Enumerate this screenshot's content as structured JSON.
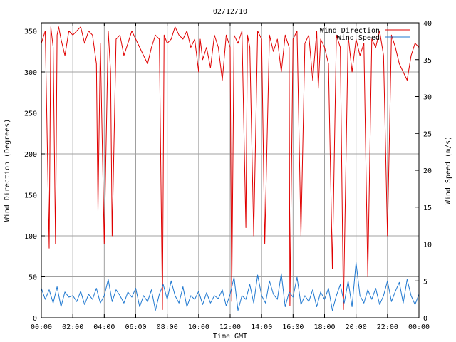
{
  "chart_data": {
    "type": "line",
    "title": "02/12/10",
    "xlabel": "Time GMT",
    "ylabel_left": "Wind Direction (Degrees)",
    "ylabel_right": "Wind Speed (m/s)",
    "xlim": [
      0,
      24
    ],
    "ylim_left": [
      0,
      360
    ],
    "ylim_right": [
      0,
      40
    ],
    "grid": true,
    "legend_position": "top-right",
    "x_ticks": [
      0,
      2,
      4,
      6,
      8,
      10,
      12,
      14,
      16,
      18,
      20,
      22,
      24
    ],
    "x_tick_labels": [
      "00:00",
      "02:00",
      "04:00",
      "06:00",
      "08:00",
      "10:00",
      "12:00",
      "14:00",
      "16:00",
      "18:00",
      "20:00",
      "22:00",
      "00:00"
    ],
    "y_left_ticks": [
      0,
      50,
      100,
      150,
      200,
      250,
      300,
      350
    ],
    "y_left_tick_labels": [
      "0",
      "50",
      "100",
      "150",
      "200",
      "250",
      "300",
      "350"
    ],
    "y_right_ticks": [
      0,
      5,
      10,
      15,
      20,
      25,
      30,
      35,
      40
    ],
    "y_right_tick_labels": [
      "0",
      "5",
      "10",
      "15",
      "20",
      "25",
      "30",
      "35",
      "40"
    ],
    "series": [
      {
        "name": "Wind Direction",
        "axis": "left",
        "color": "#e00000",
        "x": [
          0.0,
          0.25,
          0.5,
          0.6,
          0.75,
          0.9,
          1.0,
          1.1,
          1.25,
          1.5,
          1.75,
          2.0,
          2.25,
          2.5,
          2.75,
          3.0,
          3.25,
          3.5,
          3.6,
          3.75,
          4.0,
          4.25,
          4.4,
          4.5,
          4.75,
          5.0,
          5.25,
          5.5,
          5.75,
          6.0,
          6.25,
          6.5,
          6.75,
          7.0,
          7.25,
          7.5,
          7.7,
          7.8,
          8.0,
          8.25,
          8.5,
          8.75,
          9.0,
          9.25,
          9.5,
          9.75,
          10.0,
          10.1,
          10.25,
          10.5,
          10.75,
          11.0,
          11.25,
          11.5,
          11.75,
          12.0,
          12.1,
          12.25,
          12.5,
          12.75,
          13.0,
          13.1,
          13.25,
          13.5,
          13.75,
          14.0,
          14.2,
          14.5,
          14.75,
          15.0,
          15.25,
          15.5,
          15.75,
          15.8,
          16.0,
          16.25,
          16.5,
          16.75,
          17.0,
          17.25,
          17.5,
          17.6,
          17.75,
          18.0,
          18.25,
          18.5,
          18.75,
          19.0,
          19.2,
          19.5,
          19.75,
          20.0,
          20.25,
          20.5,
          20.75,
          21.0,
          21.25,
          21.5,
          21.75,
          22.0,
          22.25,
          22.5,
          22.75,
          23.0,
          23.25,
          23.5,
          23.75,
          24.0
        ],
        "values": [
          335,
          350,
          85,
          355,
          330,
          90,
          345,
          355,
          340,
          320,
          350,
          345,
          350,
          355,
          335,
          350,
          345,
          310,
          130,
          335,
          90,
          350,
          300,
          100,
          340,
          345,
          320,
          335,
          350,
          340,
          330,
          320,
          310,
          330,
          345,
          340,
          10,
          345,
          335,
          340,
          355,
          345,
          340,
          350,
          330,
          340,
          300,
          340,
          315,
          330,
          305,
          345,
          330,
          290,
          345,
          330,
          20,
          345,
          335,
          350,
          110,
          345,
          330,
          100,
          350,
          340,
          90,
          345,
          325,
          340,
          300,
          345,
          330,
          15,
          340,
          350,
          100,
          335,
          345,
          290,
          350,
          280,
          340,
          330,
          310,
          60,
          345,
          330,
          10,
          345,
          300,
          340,
          320,
          335,
          50,
          340,
          330,
          350,
          320,
          100,
          345,
          330,
          310,
          300,
          290,
          320,
          335,
          330
        ]
      },
      {
        "name": "Wind Speed",
        "axis": "right",
        "color": "#1f78d0",
        "x": [
          0.0,
          0.25,
          0.5,
          0.75,
          1.0,
          1.25,
          1.5,
          1.75,
          2.0,
          2.25,
          2.5,
          2.75,
          3.0,
          3.25,
          3.5,
          3.75,
          4.0,
          4.25,
          4.5,
          4.75,
          5.0,
          5.25,
          5.5,
          5.75,
          6.0,
          6.25,
          6.5,
          6.75,
          7.0,
          7.25,
          7.5,
          7.75,
          8.0,
          8.25,
          8.5,
          8.75,
          9.0,
          9.25,
          9.5,
          9.75,
          10.0,
          10.25,
          10.5,
          10.75,
          11.0,
          11.25,
          11.5,
          11.75,
          12.0,
          12.25,
          12.5,
          12.75,
          13.0,
          13.25,
          13.5,
          13.75,
          14.0,
          14.25,
          14.5,
          14.75,
          15.0,
          15.25,
          15.5,
          15.75,
          16.0,
          16.25,
          16.5,
          16.75,
          17.0,
          17.25,
          17.5,
          17.75,
          18.0,
          18.25,
          18.5,
          18.75,
          19.0,
          19.25,
          19.5,
          19.75,
          20.0,
          20.25,
          20.5,
          20.75,
          21.0,
          21.25,
          21.5,
          21.75,
          22.0,
          22.25,
          22.5,
          22.75,
          23.0,
          23.25,
          23.5,
          23.75,
          24.0
        ],
        "values": [
          4.0,
          2.5,
          3.8,
          2.0,
          4.2,
          1.5,
          3.5,
          2.8,
          3.0,
          2.2,
          3.6,
          1.8,
          3.2,
          2.5,
          4.0,
          2.0,
          3.0,
          5.2,
          2.2,
          3.8,
          3.0,
          2.0,
          3.5,
          2.8,
          4.0,
          1.5,
          3.0,
          2.2,
          3.8,
          1.0,
          3.2,
          4.5,
          2.5,
          5.0,
          3.0,
          2.0,
          4.2,
          1.5,
          3.0,
          2.5,
          3.6,
          1.8,
          3.4,
          2.0,
          3.0,
          2.6,
          3.8,
          1.6,
          3.2,
          5.5,
          1.0,
          3.0,
          2.5,
          4.5,
          2.0,
          5.8,
          3.0,
          2.0,
          5.0,
          3.2,
          2.5,
          6.0,
          1.5,
          3.5,
          2.8,
          5.5,
          1.8,
          3.0,
          2.2,
          3.8,
          1.5,
          3.5,
          2.5,
          4.0,
          1.0,
          3.0,
          4.5,
          2.0,
          5.0,
          1.5,
          7.5,
          3.0,
          2.0,
          3.8,
          2.5,
          4.0,
          1.8,
          3.0,
          5.0,
          2.2,
          3.6,
          4.8,
          2.0,
          5.2,
          3.0,
          1.8,
          3.2
        ]
      }
    ]
  }
}
